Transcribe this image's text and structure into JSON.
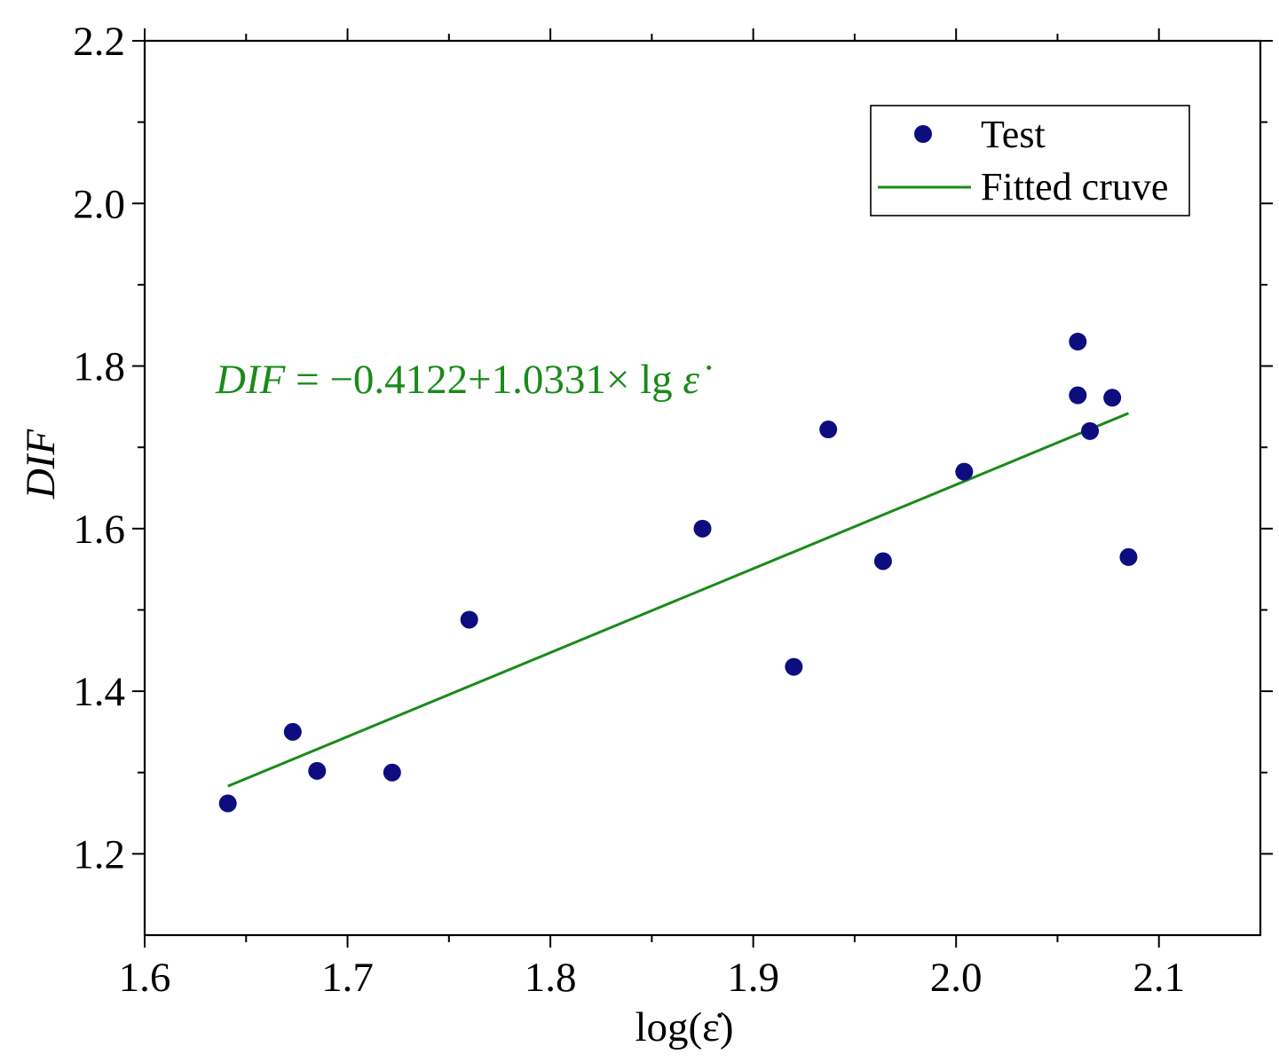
{
  "chart_data": {
    "type": "scatter",
    "title": "",
    "xlabel": "log(ε̇)",
    "ylabel": "DIF",
    "xlim": [
      1.6,
      2.15
    ],
    "ylim": [
      1.1,
      2.2
    ],
    "x_ticks": [
      1.6,
      1.7,
      1.8,
      1.9,
      2.0,
      2.1
    ],
    "x_tick_labels": [
      "1.6",
      "1.7",
      "1.8",
      "1.9",
      "2.0",
      "2.1"
    ],
    "y_ticks": [
      1.2,
      1.4,
      1.6,
      1.8,
      2.0,
      2.2
    ],
    "y_tick_labels": [
      "1.2",
      "1.4",
      "1.6",
      "1.8",
      "2.0",
      "2.2"
    ],
    "series": [
      {
        "name": "Test",
        "type": "scatter",
        "color": "#0d0d80",
        "points": [
          [
            1.641,
            1.262
          ],
          [
            1.673,
            1.35
          ],
          [
            1.685,
            1.302
          ],
          [
            1.722,
            1.3
          ],
          [
            1.76,
            1.488
          ],
          [
            1.875,
            1.6
          ],
          [
            1.92,
            1.43
          ],
          [
            1.937,
            1.722
          ],
          [
            1.964,
            1.56
          ],
          [
            2.004,
            1.67
          ],
          [
            2.06,
            1.83
          ],
          [
            2.06,
            1.764
          ],
          [
            2.066,
            1.72
          ],
          [
            2.077,
            1.761
          ],
          [
            2.085,
            1.565
          ]
        ]
      },
      {
        "name": "Fitted cruve",
        "type": "line",
        "color": "#1a8a1a",
        "points": [
          [
            1.641,
            1.2832
          ],
          [
            2.085,
            1.7419
          ]
        ]
      }
    ],
    "annotation": {
      "prefix": "DIF",
      "equals": " = ",
      "body": "−0.4122+1.0331× lg ",
      "epsilon": "ε̇",
      "color": "#1a8a1a"
    },
    "legend": {
      "position": "top-right",
      "entries": [
        "Test",
        "Fitted cruve"
      ]
    },
    "grid": false
  }
}
